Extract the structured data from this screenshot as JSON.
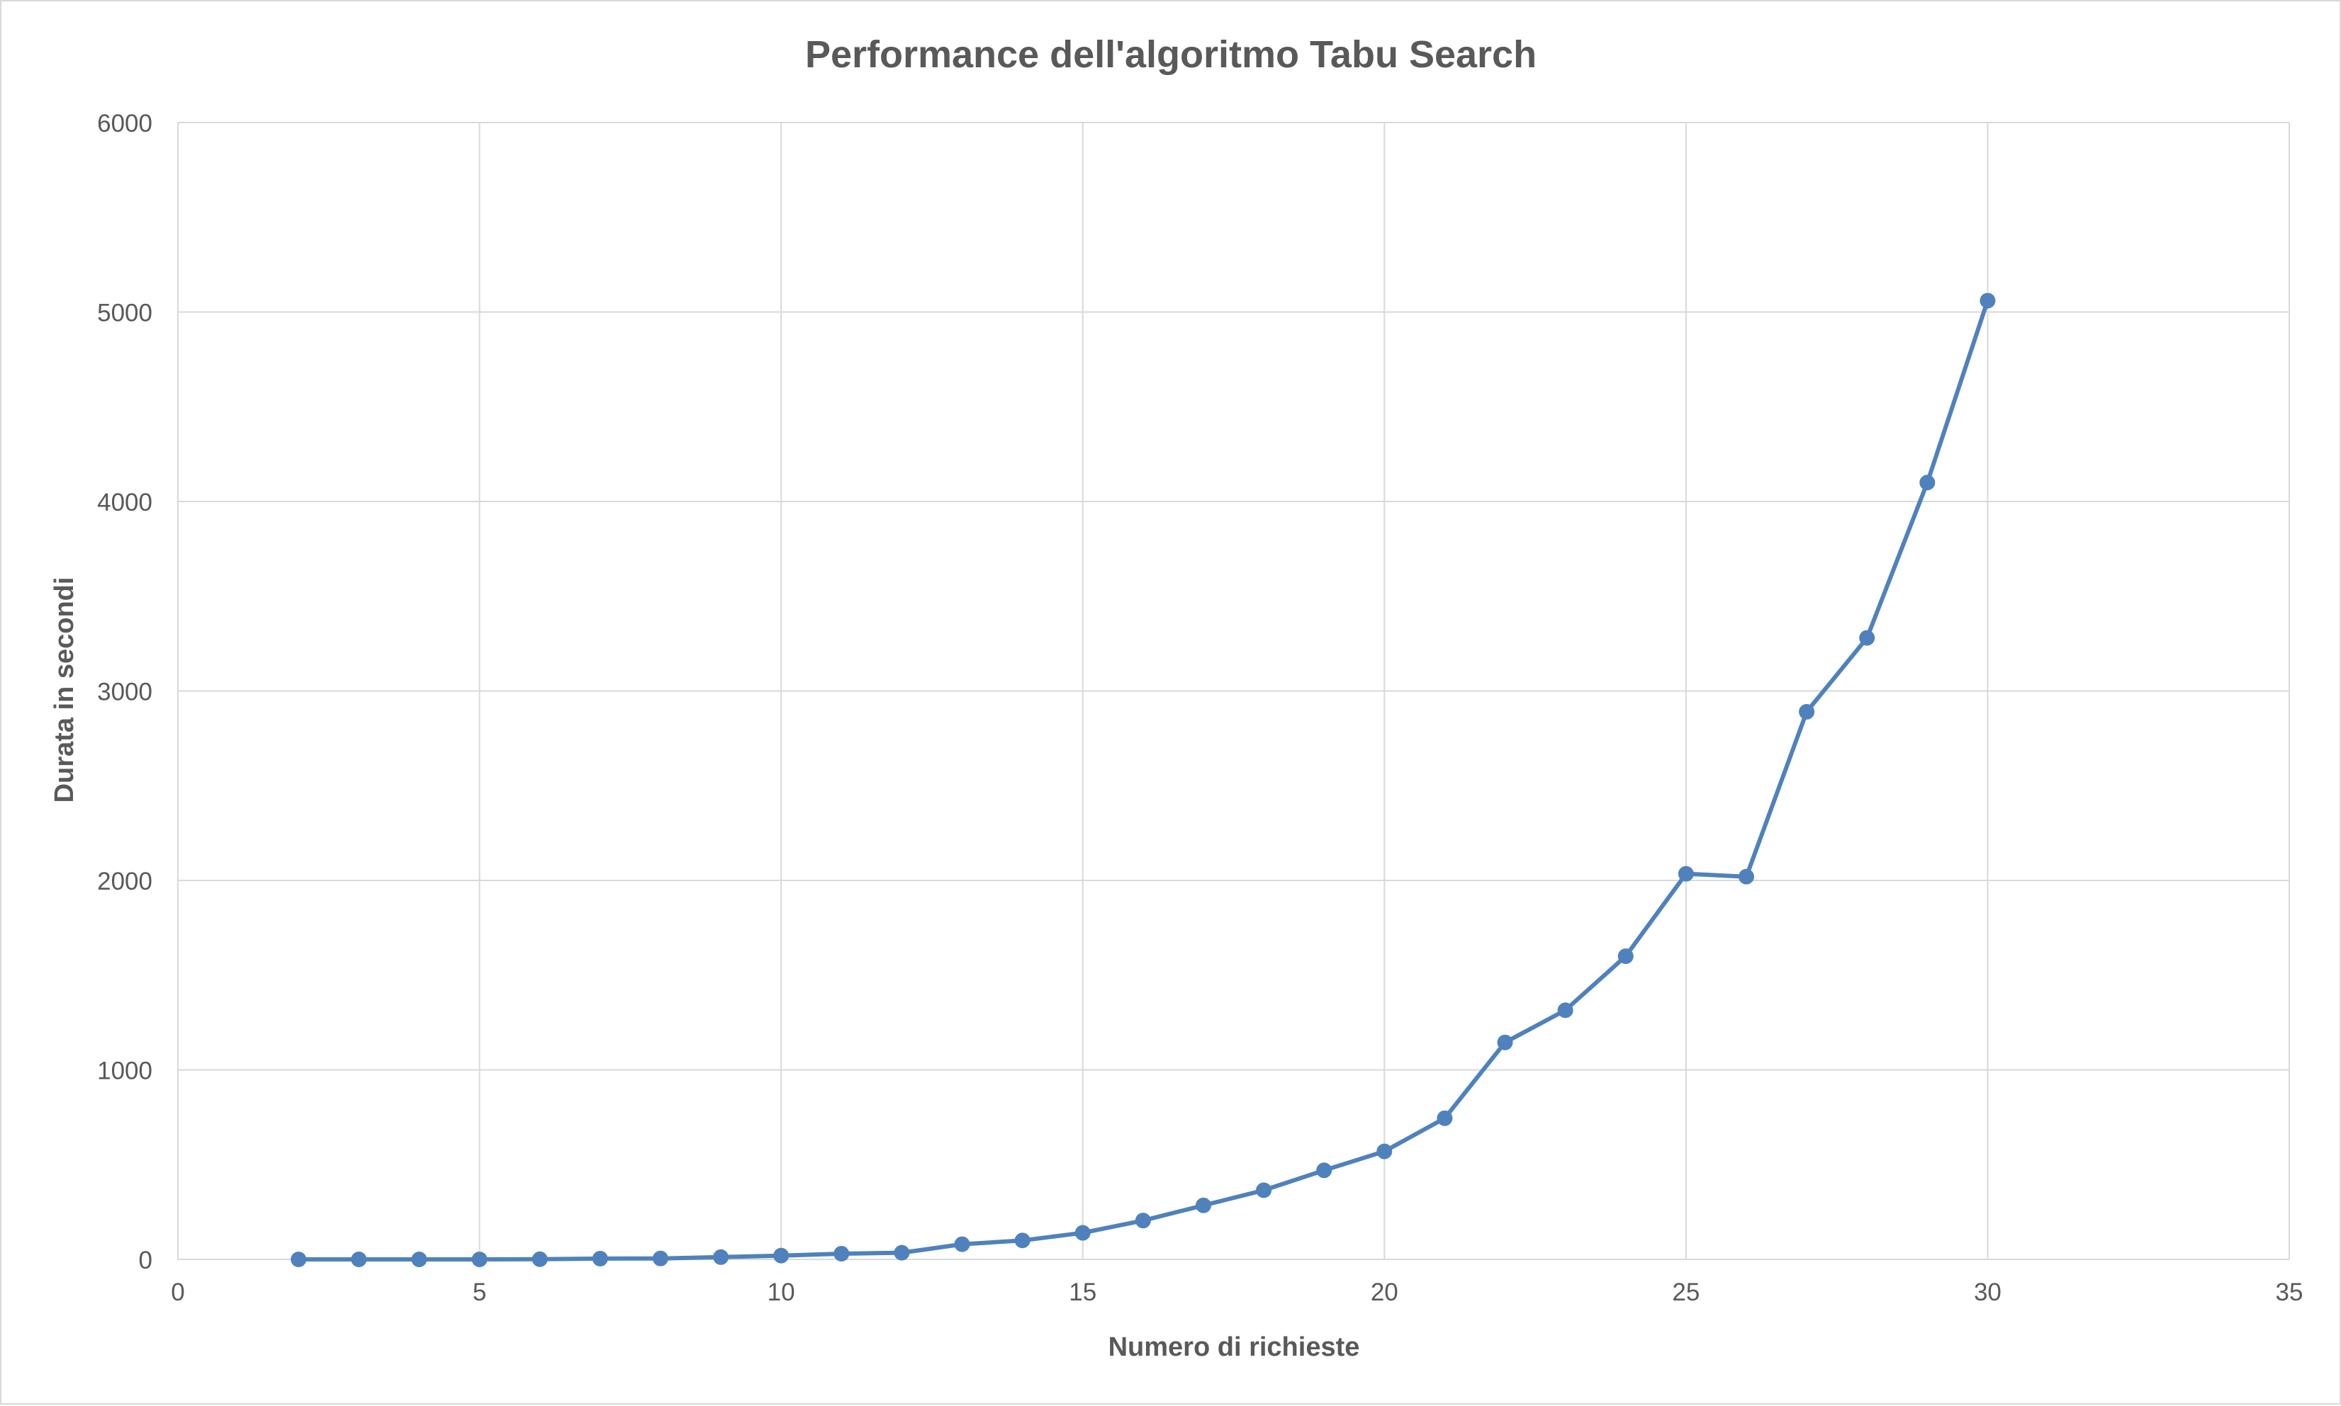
{
  "chart_data": {
    "type": "scatter",
    "mode": "lines+markers",
    "title": "Performance dell'algoritmo Tabu Search",
    "xlabel": "Numero di richieste",
    "ylabel": "Durata in secondi",
    "xlim": [
      0,
      35
    ],
    "ylim": [
      0,
      6000
    ],
    "xticks": [
      0,
      5,
      10,
      15,
      20,
      25,
      30,
      35
    ],
    "yticks": [
      0,
      1000,
      2000,
      3000,
      4000,
      5000,
      6000
    ],
    "grid": true,
    "legend": "none",
    "series": [
      {
        "color": "#4f81bd",
        "x": [
          2,
          3,
          4,
          5,
          6,
          7,
          8,
          9,
          10,
          11,
          12,
          13,
          14,
          15,
          16,
          17,
          18,
          19,
          20,
          21,
          22,
          23,
          24,
          25,
          26,
          27,
          28,
          29,
          30
        ],
        "y": [
          0,
          0,
          0,
          0,
          1,
          4,
          5,
          12,
          20,
          30,
          35,
          80,
          100,
          140,
          205,
          285,
          365,
          470,
          570,
          745,
          1145,
          1315,
          1600,
          2035,
          2020,
          2890,
          3280,
          4100,
          5060
        ]
      }
    ]
  },
  "colors": {
    "grid": "#d9d9d9",
    "text": "#595959",
    "series": "#4f81bd"
  }
}
